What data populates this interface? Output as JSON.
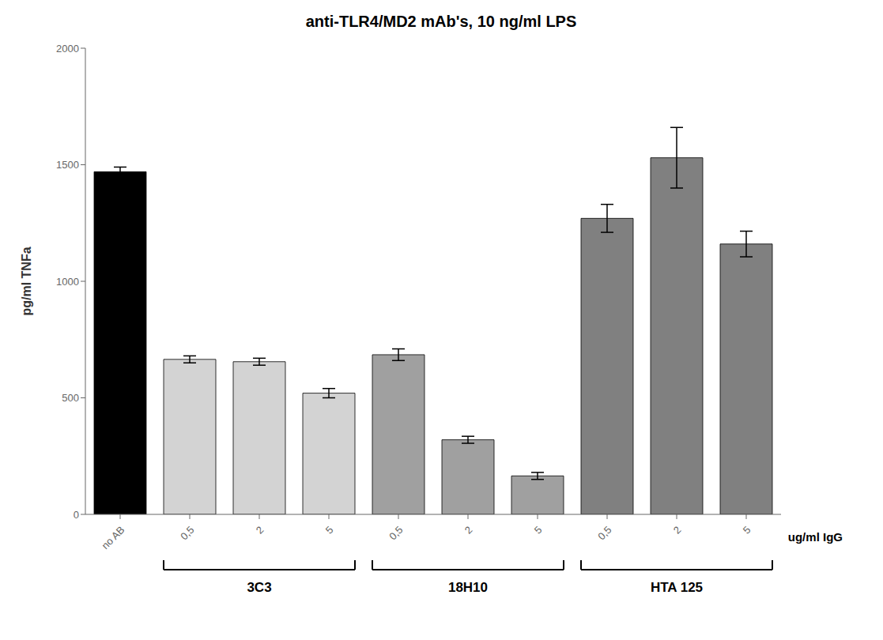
{
  "chart_data": {
    "type": "bar",
    "title": "anti-TLR4/MD2 mAb's,  10 ng/ml LPS",
    "ylabel": "pg/ml TNFa",
    "xlabel": "ug/ml IgG",
    "categories": [
      "no AB",
      "0,5",
      "2",
      "5",
      "0,5",
      "2",
      "5",
      "0,5",
      "2",
      "5"
    ],
    "values": [
      1470,
      665,
      655,
      520,
      685,
      320,
      165,
      1270,
      1530,
      1160
    ],
    "errors": [
      20,
      15,
      15,
      20,
      25,
      15,
      15,
      60,
      130,
      55
    ],
    "colors": [
      "#000000",
      "#d3d3d3",
      "#d3d3d3",
      "#d3d3d3",
      "#a0a0a0",
      "#a0a0a0",
      "#a0a0a0",
      "#808080",
      "#808080",
      "#808080"
    ],
    "groups": [
      {
        "label": "3C3",
        "start": 1,
        "end": 3
      },
      {
        "label": "18H10",
        "start": 4,
        "end": 6
      },
      {
        "label": "HTA 125",
        "start": 7,
        "end": 9
      }
    ],
    "ylim": [
      0,
      2000
    ],
    "yticks": [
      0,
      500,
      1000,
      1500,
      2000
    ],
    "grid": false
  }
}
